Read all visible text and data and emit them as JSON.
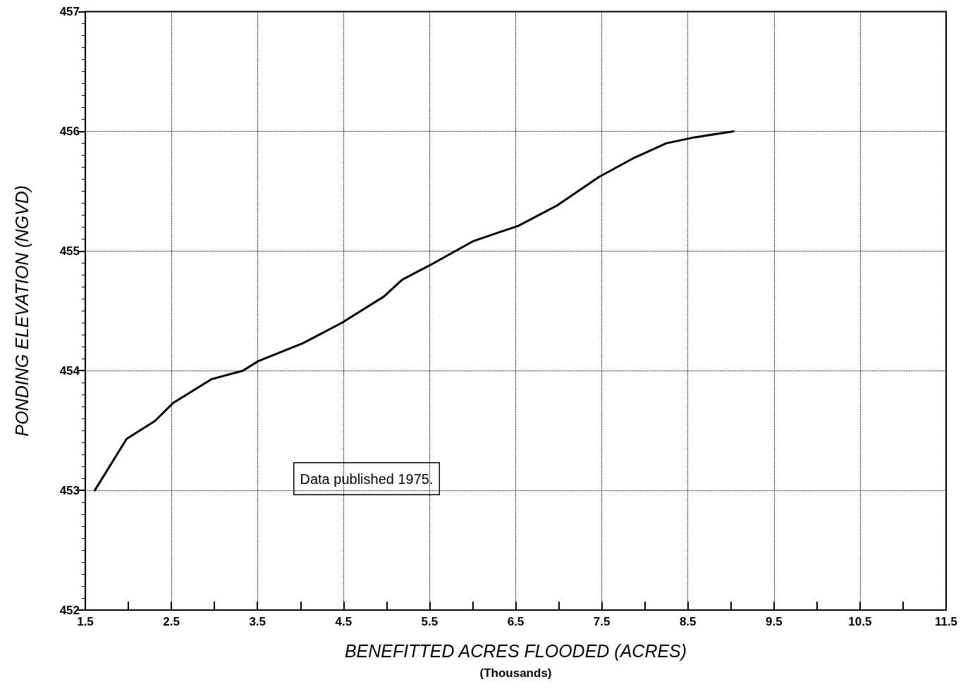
{
  "chart_data": {
    "type": "line",
    "xlabel": "BENEFITTED ACRES FLOODED (ACRES)\n(Thousands)",
    "ylabel": "PONDING ELEVATION (NGVD)",
    "annotations": [
      "Data published 1975."
    ],
    "x": [
      1.61,
      1.98,
      2.31,
      2.52,
      2.97,
      3.33,
      3.51,
      4.03,
      4.48,
      4.97,
      5.18,
      5.5,
      6.0,
      6.28,
      6.53,
      6.98,
      7.47,
      7.88,
      8.25,
      8.58,
      9.03
    ],
    "series": [
      {
        "color": "#000000",
        "values": [
          453.0,
          453.43,
          453.58,
          453.73,
          453.93,
          454.0,
          454.08,
          454.23,
          454.4,
          454.62,
          454.76,
          454.88,
          455.08,
          455.15,
          455.21,
          455.38,
          455.62,
          455.78,
          455.9,
          455.95,
          456.0
        ]
      }
    ],
    "xlim": [
      1.5,
      11.5
    ],
    "xticks": [
      1.5,
      {
        "value": 2,
        "label": null
      },
      2.5,
      {
        "value": 3,
        "label": null
      },
      3.5,
      {
        "value": 4,
        "label": null
      },
      4.5,
      {
        "value": 5,
        "label": null
      },
      5.5,
      {
        "value": 6,
        "label": null
      },
      6.5,
      {
        "value": 7,
        "label": null
      },
      7.5,
      {
        "value": 8,
        "label": null
      },
      8.5,
      {
        "value": 9,
        "label": null
      },
      9.5,
      {
        "value": 10,
        "label": null
      },
      10.5,
      {
        "value": 11,
        "label": null
      },
      11.5
    ],
    "ylim": [
      452,
      457
    ],
    "yticks": [
      452,
      453,
      454,
      455,
      456,
      457
    ],
    "grid": true,
    "marker": "none",
    "line_style": "solid"
  }
}
